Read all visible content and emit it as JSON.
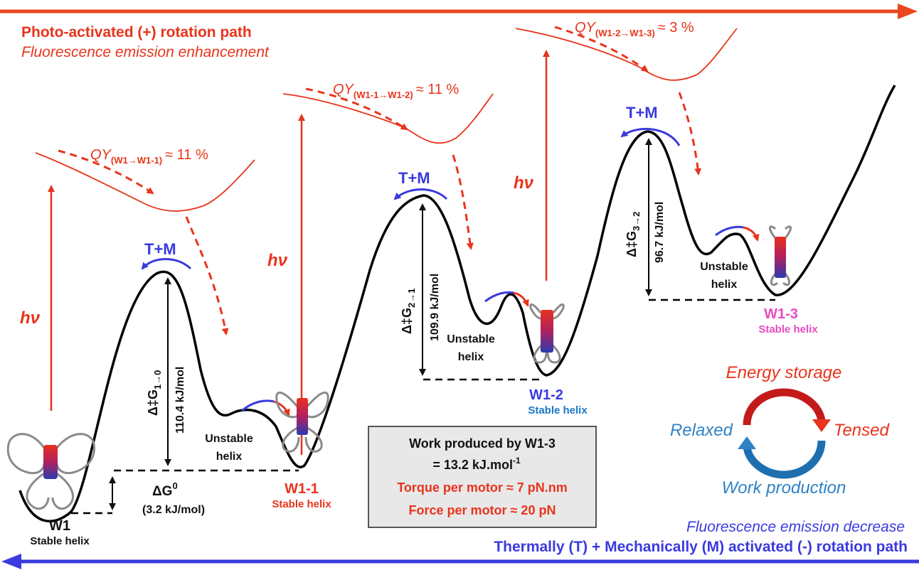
{
  "header": {
    "title": "Photo-activated (+) rotation path",
    "subtitle": "Fluorescence emission enhancement"
  },
  "footer": {
    "title": "Thermally (T) + Mechanically (M) activated (-) rotation path",
    "subtitle": "Fluorescence emission decrease"
  },
  "excitation": {
    "label": "hν",
    "qy": [
      {
        "prefix": "QY",
        "sub": "(W1→W1-1)",
        "value": "≈ 11 %"
      },
      {
        "prefix": "QY",
        "sub": "(W1-1→W1-2)",
        "value": "≈ 11 %"
      },
      {
        "prefix": "QY",
        "sub": "(W1-2→W1-3)",
        "value": "≈ 3 %"
      }
    ]
  },
  "states": [
    {
      "name": "W1",
      "label": "Stable helix"
    },
    {
      "name": "W1-1",
      "label": "Stable helix"
    },
    {
      "name": "W1-2",
      "label": "Stable helix"
    },
    {
      "name": "W1-3",
      "label": "Stable helix"
    }
  ],
  "unstable": [
    "Unstable",
    "helix"
  ],
  "barriers": [
    {
      "tm": "T+M",
      "dg": "Δ‡G",
      "sub": "1→0",
      "value": "110.4 kJ/mol"
    },
    {
      "tm": "T+M",
      "dg": "Δ‡G",
      "sub": "2→1",
      "value": "109.9 kJ/mol"
    },
    {
      "tm": "T+M",
      "dg": "Δ‡G",
      "sub": "3→2",
      "value": "96.7 kJ/mol"
    }
  ],
  "delta_g0": {
    "label": "ΔG",
    "sup": "0",
    "value": "(3.2 kJ/mol)"
  },
  "work_box": {
    "line1": "Work produced by W1-3",
    "line2": "= 13.2 kJ.mol",
    "line2_sup": "-1",
    "line3": "Torque per motor ≈ 7 pN.nm",
    "line4": "Force per motor ≈ 20 pN"
  },
  "cycle": {
    "top": "Energy storage",
    "right": "Tensed",
    "bottom": "Work production",
    "left": "Relaxed"
  },
  "colors": {
    "red": "#e8341c",
    "blue": "#3a3adf",
    "magenta": "#e84ac0"
  }
}
